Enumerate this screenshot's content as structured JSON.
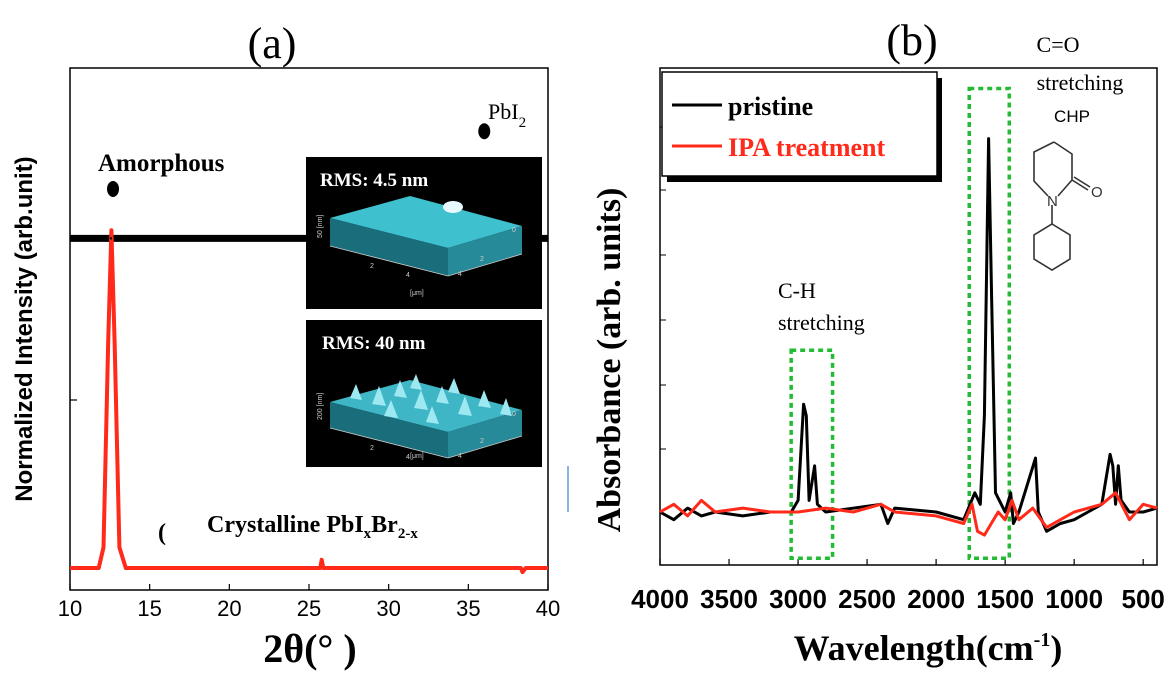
{
  "chart_data": [
    {
      "panel_label": "(a)",
      "type": "line",
      "xlabel": "2θ(° )",
      "ylabel": "Normalized Intensity (arb.unit)",
      "xlim": [
        10,
        40
      ],
      "xticks": [
        "10",
        "15",
        "20",
        "25",
        "30",
        "35",
        "40"
      ],
      "grid": false,
      "series": [
        {
          "name": "Amorphous",
          "color": "#000000",
          "baseline": 0.8,
          "points": [
            [
              10,
              0.8
            ],
            [
              12.5,
              0.8
            ],
            [
              25,
              0.8
            ],
            [
              40,
              0.8
            ]
          ]
        },
        {
          "name": "Crystalline PbIxBr2-x",
          "color": "#ff2a1a",
          "baseline": 0.0,
          "points": [
            [
              10,
              0.0
            ],
            [
              11.8,
              0.0
            ],
            [
              12.1,
              0.05
            ],
            [
              12.4,
              0.55
            ],
            [
              12.6,
              0.82
            ],
            [
              12.8,
              0.55
            ],
            [
              13.1,
              0.05
            ],
            [
              13.5,
              0.0
            ],
            [
              25.7,
              0.0
            ],
            [
              25.8,
              0.02
            ],
            [
              25.9,
              0.0
            ],
            [
              38.3,
              0.0
            ],
            [
              38.4,
              -0.01
            ],
            [
              38.6,
              0.0
            ],
            [
              40,
              0.0
            ]
          ]
        }
      ],
      "annotations": {
        "amorphous": "Amorphous",
        "pbi2": "PbI",
        "pbi2_sub": "2",
        "crystalline_main": "Crystalline PbI",
        "crystalline_sub1": "x",
        "crystalline_mid": "Br",
        "crystalline_sub2": "2-x"
      },
      "markers": [
        {
          "symbol": "filled-circle",
          "x": 12.7,
          "y": 0.92
        },
        {
          "symbol": "filled-circle",
          "x": 36.0,
          "y": 1.06
        }
      ],
      "insets": [
        {
          "label": "RMS: 4.5 nm",
          "zlabel": "50 [nm]",
          "xlabel": "[μm]",
          "ticks": [
            "2",
            "4",
            "0",
            "2",
            "4"
          ]
        },
        {
          "label": "RMS: 40 nm",
          "zlabel": "200 [nm]",
          "xlabel": "[μm]",
          "ticks": [
            "2",
            "4",
            "0",
            "2",
            "4"
          ]
        }
      ]
    },
    {
      "panel_label": "(b)",
      "type": "line",
      "xlabel": "Wavelength",
      "xlabel_unit": "(cm",
      "xlabel_sup": "-1",
      "xlabel_close": ")",
      "ylabel": "Absorbance (arb. units)",
      "xlim": [
        4000,
        400
      ],
      "xticks": [
        "4000",
        "3500",
        "3000",
        "2500",
        "2000",
        "1500",
        "1000",
        "500"
      ],
      "grid": false,
      "legend": {
        "position": "top-left",
        "entries": [
          "pristine",
          "IPA treatment"
        ]
      },
      "series": [
        {
          "name": "pristine",
          "color": "#000000",
          "points": [
            [
              4000,
              0.0
            ],
            [
              3900,
              -0.02
            ],
            [
              3800,
              0.01
            ],
            [
              3700,
              -0.01
            ],
            [
              3600,
              0.0
            ],
            [
              3400,
              -0.01
            ],
            [
              3200,
              0.0
            ],
            [
              3050,
              0.0
            ],
            [
              3000,
              0.03
            ],
            [
              2960,
              0.28
            ],
            [
              2940,
              0.25
            ],
            [
              2920,
              0.03
            ],
            [
              2880,
              0.12
            ],
            [
              2860,
              0.02
            ],
            [
              2800,
              0.0
            ],
            [
              2400,
              0.02
            ],
            [
              2350,
              -0.03
            ],
            [
              2300,
              0.01
            ],
            [
              2000,
              0.0
            ],
            [
              1800,
              -0.02
            ],
            [
              1720,
              0.05
            ],
            [
              1680,
              0.02
            ],
            [
              1650,
              0.25
            ],
            [
              1620,
              0.97
            ],
            [
              1600,
              0.6
            ],
            [
              1570,
              0.05
            ],
            [
              1500,
              0.0
            ],
            [
              1460,
              0.05
            ],
            [
              1440,
              -0.03
            ],
            [
              1400,
              0.0
            ],
            [
              1280,
              0.14
            ],
            [
              1260,
              0.0
            ],
            [
              1200,
              -0.05
            ],
            [
              1100,
              -0.03
            ],
            [
              1000,
              -0.02
            ],
            [
              900,
              0.0
            ],
            [
              800,
              0.02
            ],
            [
              740,
              0.15
            ],
            [
              720,
              0.12
            ],
            [
              700,
              0.02
            ],
            [
              680,
              0.12
            ],
            [
              660,
              0.03
            ],
            [
              600,
              0.0
            ],
            [
              500,
              0.0
            ],
            [
              400,
              0.01
            ]
          ]
        },
        {
          "name": "IPA treatment",
          "color": "#ff2a1a",
          "points": [
            [
              4000,
              0.0
            ],
            [
              3900,
              0.02
            ],
            [
              3800,
              -0.01
            ],
            [
              3700,
              0.03
            ],
            [
              3600,
              0.0
            ],
            [
              3400,
              0.01
            ],
            [
              3200,
              0.0
            ],
            [
              3000,
              0.0
            ],
            [
              2800,
              0.01
            ],
            [
              2600,
              0.0
            ],
            [
              2400,
              0.02
            ],
            [
              2300,
              0.0
            ],
            [
              2000,
              -0.01
            ],
            [
              1800,
              -0.03
            ],
            [
              1740,
              0.02
            ],
            [
              1700,
              -0.05
            ],
            [
              1650,
              -0.06
            ],
            [
              1600,
              -0.03
            ],
            [
              1550,
              0.0
            ],
            [
              1500,
              -0.02
            ],
            [
              1450,
              0.03
            ],
            [
              1400,
              -0.02
            ],
            [
              1300,
              0.01
            ],
            [
              1200,
              -0.04
            ],
            [
              1100,
              -0.02
            ],
            [
              1000,
              0.0
            ],
            [
              800,
              0.02
            ],
            [
              700,
              0.05
            ],
            [
              600,
              -0.02
            ],
            [
              500,
              0.02
            ],
            [
              400,
              0.01
            ]
          ]
        }
      ],
      "annotations": {
        "ch_line1": "C-H",
        "ch_line2": "stretching",
        "co_line1": "C=O",
        "co_line2": "stretching",
        "co_line3": "CHP",
        "molecule_atom_n": "N",
        "molecule_atom_o": "O"
      },
      "highlight_boxes": [
        {
          "color": "#22bb33",
          "x_from": 3050,
          "x_to": 2750,
          "y_from": -0.12,
          "y_to": 0.42
        },
        {
          "color": "#22bb33",
          "x_from": 1760,
          "x_to": 1470,
          "y_from": -0.12,
          "y_to": 1.1
        }
      ]
    }
  ]
}
